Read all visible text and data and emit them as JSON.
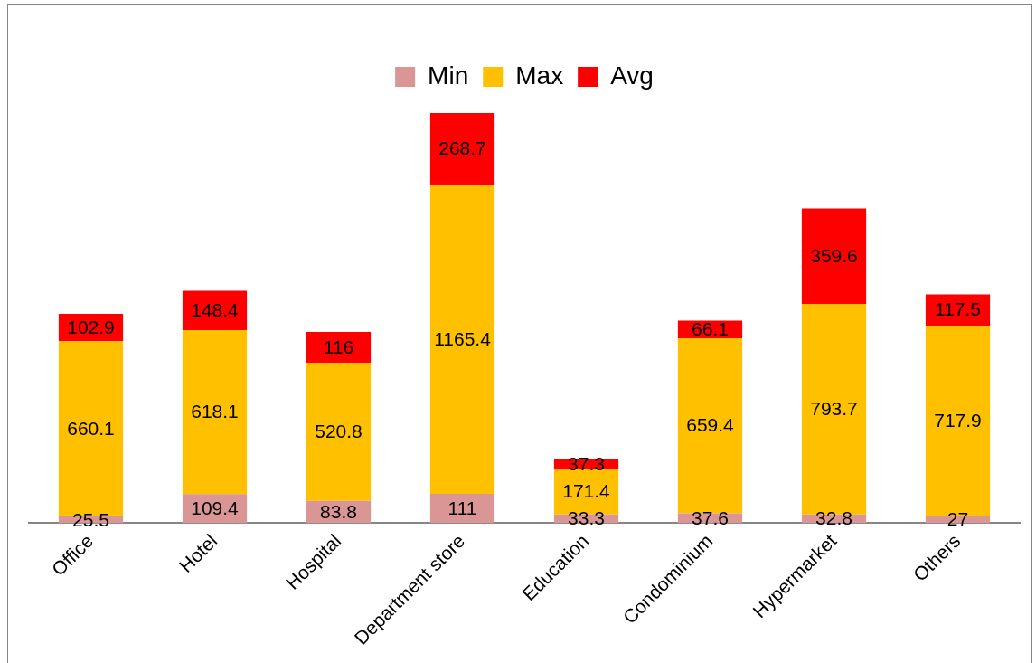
{
  "chart_data": {
    "type": "bar",
    "stacked": true,
    "data_labels": true,
    "legend": "top",
    "categories": [
      "Office",
      "Hotel",
      "Hospital",
      "Department store",
      "Education",
      "Condominium",
      "Hypermarket",
      "Others"
    ],
    "series": [
      {
        "name": "Min",
        "color": "#d99694",
        "values": [
          25.5,
          109.4,
          83.8,
          111,
          33.3,
          37.6,
          32.8,
          27
        ]
      },
      {
        "name": "Max",
        "color": "#ffc000",
        "values": [
          660.1,
          618.1,
          520.8,
          1165.4,
          171.4,
          659.4,
          793.7,
          717.9
        ]
      },
      {
        "name": "Avg",
        "color": "#ff0000",
        "values": [
          102.9,
          148.4,
          116,
          268.7,
          37.3,
          66.1,
          359.6,
          117.5
        ]
      }
    ]
  }
}
